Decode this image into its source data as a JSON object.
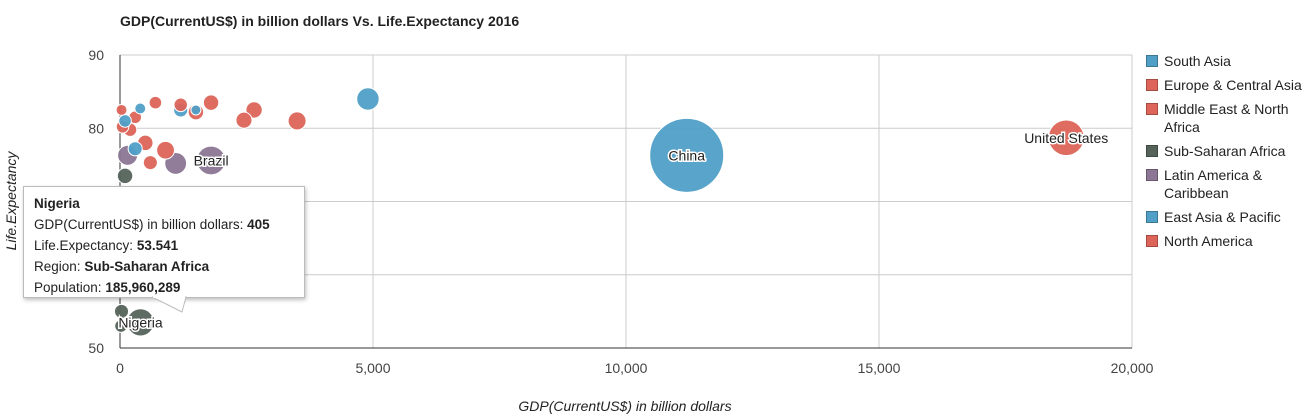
{
  "chart_data": {
    "type": "scatter",
    "subtype": "bubble",
    "title": "GDP(CurrentUS$) in billion dollars Vs. Life.Expectancy 2016",
    "xlabel": "GDP(CurrentUS$) in billion dollars",
    "ylabel": "Life.Expectancy",
    "xlim": [
      0,
      20000
    ],
    "ylim": [
      50,
      90
    ],
    "xticks": [
      "0",
      "5,000",
      "10,000",
      "15,000",
      "20,000"
    ],
    "yticks": [
      "50",
      "60",
      "70",
      "80",
      "90"
    ],
    "grid": true,
    "legend_position": "right",
    "series": [
      {
        "name": "South Asia",
        "color": "#4f9fc7"
      },
      {
        "name": "Europe & Central Asia",
        "color": "#dd6459"
      },
      {
        "name": "Middle East & North Africa",
        "color": "#dd6459"
      },
      {
        "name": "Sub-Saharan Africa",
        "color": "#55635a"
      },
      {
        "name": "Latin America & Caribbean",
        "color": "#8b7693"
      },
      {
        "name": "East Asia & Pacific",
        "color": "#4f9fc7"
      },
      {
        "name": "North America",
        "color": "#dd6459"
      }
    ],
    "points": [
      {
        "label": "China",
        "x": 11200,
        "y": 76.3,
        "r": 1380,
        "color": "#4f9fc7"
      },
      {
        "label": "United States",
        "x": 18700,
        "y": 78.7,
        "r": 320,
        "color": "#dd6459"
      },
      {
        "label": "Brazil",
        "x": 1800,
        "y": 75.6,
        "r": 208,
        "color": "#8b7693"
      },
      {
        "label": "Nigeria",
        "x": 405,
        "y": 53.5,
        "r": 186,
        "color": "#55635a"
      },
      {
        "label": "",
        "x": 4900,
        "y": 84,
        "r": 127,
        "color": "#4f9fc7"
      },
      {
        "label": "",
        "x": 3500,
        "y": 81,
        "r": 82,
        "color": "#dd6459"
      },
      {
        "label": "",
        "x": 2650,
        "y": 82.5,
        "r": 67,
        "color": "#dd6459"
      },
      {
        "label": "",
        "x": 2450,
        "y": 81.1,
        "r": 65,
        "color": "#dd6459"
      },
      {
        "label": "",
        "x": 1800,
        "y": 83.5,
        "r": 60,
        "color": "#dd6459"
      },
      {
        "label": "",
        "x": 1200,
        "y": 83.2,
        "r": 46,
        "color": "#dd6459"
      },
      {
        "label": "",
        "x": 1500,
        "y": 82.5,
        "r": 24,
        "color": "#4f9fc7"
      },
      {
        "label": "",
        "x": 1200,
        "y": 82.5,
        "r": 50,
        "color": "#4f9fc7"
      },
      {
        "label": "",
        "x": 1500,
        "y": 82.2,
        "r": 60,
        "color": "#dd6459"
      },
      {
        "label": "",
        "x": 700,
        "y": 83.5,
        "r": 40,
        "color": "#dd6459"
      },
      {
        "label": "",
        "x": 900,
        "y": 77.0,
        "r": 80,
        "color": "#dd6459"
      },
      {
        "label": "",
        "x": 1100,
        "y": 75.2,
        "r": 120,
        "color": "#8b7693"
      },
      {
        "label": "",
        "x": 600,
        "y": 75.3,
        "r": 50,
        "color": "#dd6459"
      },
      {
        "label": "",
        "x": 500,
        "y": 78.0,
        "r": 60,
        "color": "#dd6459"
      },
      {
        "label": "",
        "x": 400,
        "y": 82.7,
        "r": 30,
        "color": "#4f9fc7"
      },
      {
        "label": "",
        "x": 300,
        "y": 81.5,
        "r": 40,
        "color": "#dd6459"
      },
      {
        "label": "",
        "x": 200,
        "y": 79.8,
        "r": 45,
        "color": "#dd6459"
      },
      {
        "label": "",
        "x": 300,
        "y": 77.2,
        "r": 50,
        "color": "#4f9fc7"
      },
      {
        "label": "",
        "x": 150,
        "y": 76.3,
        "r": 100,
        "color": "#8b7693"
      },
      {
        "label": "",
        "x": 100,
        "y": 73.5,
        "r": 60,
        "color": "#55635a"
      },
      {
        "label": "",
        "x": 50,
        "y": 70.0,
        "r": 70,
        "color": "#55635a"
      },
      {
        "label": "",
        "x": 50,
        "y": 62.0,
        "r": 50,
        "color": "#55635a"
      },
      {
        "label": "",
        "x": 30,
        "y": 58.0,
        "r": 60,
        "color": "#55635a"
      },
      {
        "label": "",
        "x": 30,
        "y": 55.0,
        "r": 50,
        "color": "#55635a"
      },
      {
        "label": "",
        "x": 20,
        "y": 53.0,
        "r": 40,
        "color": "#55635a"
      },
      {
        "label": "",
        "x": 50,
        "y": 80.2,
        "r": 40,
        "color": "#dd6459"
      },
      {
        "label": "",
        "x": 30,
        "y": 82.5,
        "r": 30,
        "color": "#dd6459"
      },
      {
        "label": "",
        "x": 100,
        "y": 81.0,
        "r": 40,
        "color": "#4f9fc7"
      },
      {
        "label": "",
        "x": 2300,
        "y": 68.3,
        "r": 120,
        "color": "#4f9fc7"
      },
      {
        "label": "",
        "x": 1200,
        "y": 70.0,
        "r": 70,
        "color": "#dd6459"
      }
    ]
  },
  "tooltip": {
    "title": "Nigeria",
    "x_label": "GDP(CurrentUS$) in billion dollars:",
    "x_value": "405",
    "y_label": "Life.Expectancy:",
    "y_value": "53.541",
    "region_label": "Region:",
    "region_value": "Sub-Saharan Africa",
    "population_label": "Population:",
    "population_value": "185,960,289"
  }
}
